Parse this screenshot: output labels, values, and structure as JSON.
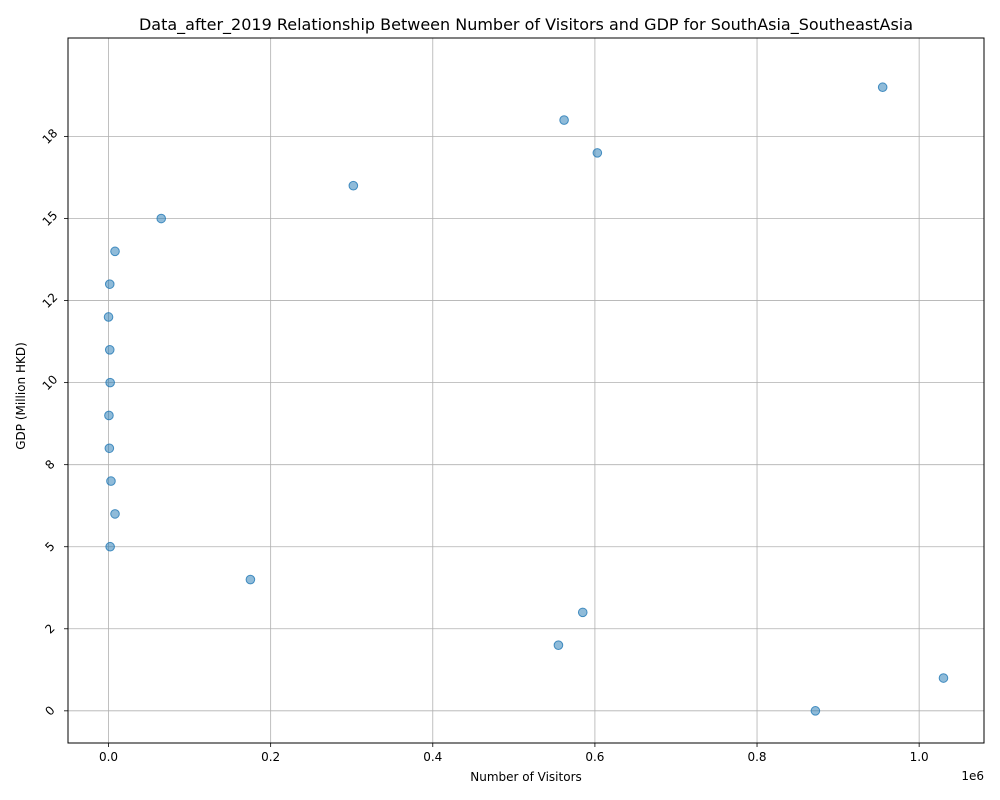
{
  "chart_data": {
    "type": "scatter",
    "title": "Data_after_2019 Relationship Between Number of Visitors and GDP for SouthAsia_SoutheastAsia",
    "xlabel": "Number of Visitors",
    "ylabel": "GDP (Million HKD)",
    "x_offset_label": "1e6",
    "xlim": [
      -50000,
      1080000
    ],
    "ylim": [
      -0.98,
      20.5
    ],
    "grid": true,
    "x_ticks": [
      0,
      200000,
      400000,
      600000,
      800000,
      1000000
    ],
    "x_tick_labels": [
      "0.0",
      "0.2",
      "0.4",
      "0.6",
      "0.8",
      "1.0"
    ],
    "y_ticks": [
      0,
      2.5,
      5,
      7.5,
      10,
      12.5,
      15,
      17.5
    ],
    "y_tick_labels": [
      "0",
      "2",
      "5",
      "8",
      "10",
      "12",
      "15",
      "18"
    ],
    "point_color": "#1f77b4",
    "point_opacity": 0.5,
    "points": [
      {
        "x": 872000,
        "y": 0.0
      },
      {
        "x": 1030000,
        "y": 1.0
      },
      {
        "x": 555000,
        "y": 2.0
      },
      {
        "x": 585000,
        "y": 3.0
      },
      {
        "x": 175000,
        "y": 4.0
      },
      {
        "x": 2000,
        "y": 5.0
      },
      {
        "x": 8000,
        "y": 6.0
      },
      {
        "x": 3000,
        "y": 7.0
      },
      {
        "x": 1000,
        "y": 8.0
      },
      {
        "x": 500,
        "y": 9.0
      },
      {
        "x": 2000,
        "y": 10.0
      },
      {
        "x": 1500,
        "y": 11.0
      },
      {
        "x": 0,
        "y": 12.0
      },
      {
        "x": 1500,
        "y": 13.0
      },
      {
        "x": 8000,
        "y": 14.0
      },
      {
        "x": 65000,
        "y": 15.0
      },
      {
        "x": 302000,
        "y": 16.0
      },
      {
        "x": 603000,
        "y": 17.0
      },
      {
        "x": 562000,
        "y": 18.0
      },
      {
        "x": 955000,
        "y": 19.0
      }
    ]
  }
}
